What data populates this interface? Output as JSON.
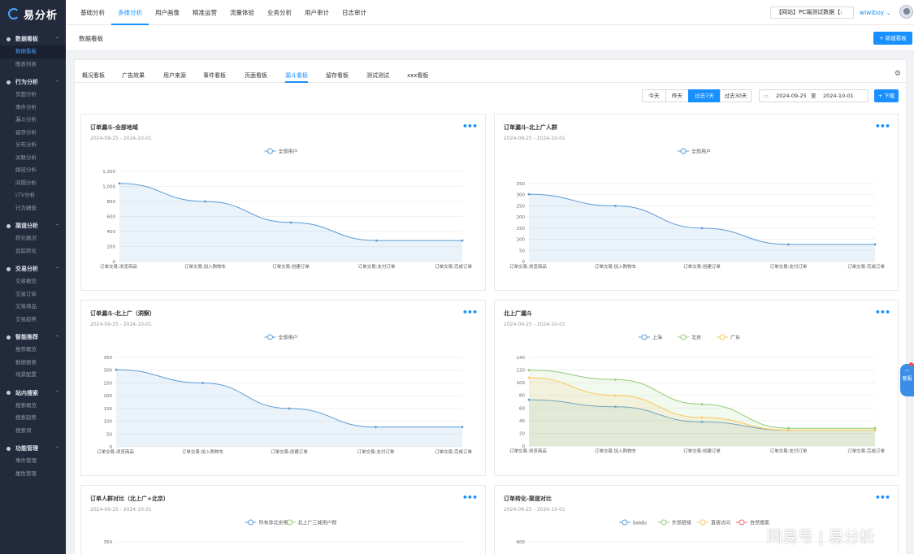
{
  "app": {
    "name": "易分析"
  },
  "sidebar": {
    "groups": [
      {
        "label": "数据看板",
        "items": [
          {
            "label": "数据看板",
            "active": true
          },
          {
            "label": "图表列表"
          }
        ]
      },
      {
        "label": "行为分析",
        "items": [
          {
            "label": "页面分析"
          },
          {
            "label": "事件分析"
          },
          {
            "label": "漏斗分析"
          },
          {
            "label": "留存分析"
          },
          {
            "label": "分布分析"
          },
          {
            "label": "关联分析"
          },
          {
            "label": "路径分析"
          },
          {
            "label": "间隔分析"
          },
          {
            "label": "LTV分析"
          },
          {
            "label": "行为细查"
          }
        ]
      },
      {
        "label": "渠道分析",
        "items": [
          {
            "label": "转化概况"
          },
          {
            "label": "追踪转化"
          }
        ]
      },
      {
        "label": "交易分析",
        "items": [
          {
            "label": "交易概览"
          },
          {
            "label": "交易订单"
          },
          {
            "label": "交易商品"
          },
          {
            "label": "交易趋势"
          }
        ]
      },
      {
        "label": "智能推荐",
        "items": [
          {
            "label": "推荐概览"
          },
          {
            "label": "数据报表"
          },
          {
            "label": "场景配置"
          }
        ]
      },
      {
        "label": "站内搜索",
        "items": [
          {
            "label": "搜索概览"
          },
          {
            "label": "搜索趋势"
          },
          {
            "label": "搜索词"
          }
        ]
      },
      {
        "label": "功能管理",
        "items": [
          {
            "label": "事件管理"
          },
          {
            "label": "属性管理"
          }
        ]
      }
    ]
  },
  "topnav": {
    "items": [
      {
        "label": "基础分析"
      },
      {
        "label": "多维分析",
        "active": true
      },
      {
        "label": "用户画像"
      },
      {
        "label": "精准运营"
      },
      {
        "label": "流量体验"
      },
      {
        "label": "业务分析"
      },
      {
        "label": "用户审计"
      },
      {
        "label": "日志审计"
      }
    ],
    "project": "【网站】PC端测试数据【:",
    "user": "wiwiboy"
  },
  "subheader": {
    "title": "数据看板",
    "new_button": "+ 新建看板"
  },
  "tabs": [
    {
      "label": "概况看板"
    },
    {
      "label": "广告效果"
    },
    {
      "label": "用户来源"
    },
    {
      "label": "事件看板"
    },
    {
      "label": "页面看板"
    },
    {
      "label": "漏斗看板",
      "active": true
    },
    {
      "label": "留存看板"
    },
    {
      "label": "测试测试"
    },
    {
      "label": "xxx看板"
    }
  ],
  "date_controls": {
    "presets": [
      {
        "label": "今天"
      },
      {
        "label": "昨天"
      },
      {
        "label": "过去7天",
        "active": true
      },
      {
        "label": "过去30天"
      }
    ],
    "start": "2024-09-25",
    "sep": "至",
    "end": "2024-10-01",
    "download": "+ 下载"
  },
  "float_button": {
    "label": "客服"
  },
  "watermark": "网易号 | 易分析",
  "chart_data": [
    {
      "type": "area",
      "title": "订单漏斗-全部地域",
      "date_range": "2024-09-25 - 2024-10-01",
      "categories": [
        "订单交易:浏览商品",
        "订单交易:加入购物车",
        "订单交易:创建订单",
        "订单交易:支付订单",
        "订单交易:完成订单"
      ],
      "ylim": [
        0,
        1200
      ],
      "yticks": [
        "0",
        "200",
        "400",
        "600",
        "800",
        "1,000",
        "1,200"
      ],
      "colors": [
        "#5b9bd5"
      ],
      "series": [
        {
          "name": "全部用户",
          "values": [
            1040,
            800,
            520,
            280,
            280
          ]
        }
      ]
    },
    {
      "type": "area",
      "title": "订单漏斗-北上广人群",
      "date_range": "2024-09-25 - 2024-10-01",
      "categories": [
        "订单交易:浏览商品",
        "订单交易:加入购物车",
        "订单交易:创建订单",
        "订单交易:支付订单",
        "订单交易:完成订单"
      ],
      "ylim": [
        0,
        350
      ],
      "yticks": [
        "0",
        "50",
        "100",
        "150",
        "200",
        "250",
        "300",
        "350"
      ],
      "colors": [
        "#5b9bd5"
      ],
      "series": [
        {
          "name": "全部用户",
          "values": [
            302,
            250,
            150,
            77,
            77
          ]
        }
      ]
    },
    {
      "type": "area",
      "title": "订单漏斗-北上广（洞察）",
      "date_range": "2024-09-25 - 2024-10-01",
      "categories": [
        "订单交易:浏览商品",
        "订单交易:加入购物车",
        "订单交易:创建订单",
        "订单交易:支付订单",
        "订单交易:完成订单"
      ],
      "ylim": [
        0,
        350
      ],
      "yticks": [
        "0",
        "50",
        "100",
        "150",
        "200",
        "250",
        "300",
        "350"
      ],
      "colors": [
        "#5b9bd5"
      ],
      "series": [
        {
          "name": "全部用户",
          "values": [
            302,
            250,
            150,
            77,
            77
          ]
        }
      ]
    },
    {
      "type": "area",
      "title": "北上广漏斗",
      "date_range": "2024-09-25 - 2024-10-01",
      "categories": [
        "订单交易:浏览商品",
        "订单交易:加入购物车",
        "订单交易:创建订单",
        "订单交易:支付订单",
        "订单交易:完成订单"
      ],
      "ylim": [
        0,
        140
      ],
      "yticks": [
        "0",
        "20",
        "40",
        "60",
        "80",
        "100",
        "120",
        "140"
      ],
      "colors": [
        "#5b9bd5",
        "#91cc75",
        "#fac858"
      ],
      "series": [
        {
          "name": "上海",
          "values": [
            73,
            62,
            38,
            25,
            25
          ]
        },
        {
          "name": "北京",
          "values": [
            120,
            105,
            66,
            28,
            28
          ]
        },
        {
          "name": "广东",
          "values": [
            108,
            80,
            45,
            25,
            25
          ]
        }
      ]
    },
    {
      "type": "line",
      "title": "订单人群对比（北上广+北京）",
      "date_range": "2024-09-25 - 2024-10-01",
      "categories": [],
      "ylim": [
        0,
        350
      ],
      "yticks": [
        "350"
      ],
      "colors": [
        "#5b9bd5",
        "#91cc75"
      ],
      "series": [
        {
          "name": "所有非北京用户",
          "values": []
        },
        {
          "name": "北上广三城用户群",
          "values": []
        }
      ]
    },
    {
      "type": "line",
      "title": "订单转化-渠道对比",
      "date_range": "2024-09-25 - 2024-10-01",
      "categories": [],
      "ylim": [
        0,
        600
      ],
      "yticks": [
        "600"
      ],
      "colors": [
        "#5b9bd5",
        "#91cc75",
        "#fac858",
        "#ee6666"
      ],
      "series": [
        {
          "name": "baidu",
          "values": []
        },
        {
          "name": "外部链接",
          "values": []
        },
        {
          "name": "直接访问",
          "values": []
        },
        {
          "name": "自然搜索",
          "values": []
        }
      ]
    }
  ]
}
